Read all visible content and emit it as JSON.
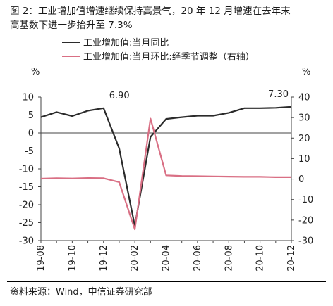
{
  "header": {
    "title_line1": "图 2：工业增加值增速继续保持高景气，20 年 12 月增速在去年末",
    "title_line2": "高基数下进一步抬升至 7.3%"
  },
  "footer": {
    "source": "资料来源：Wind，中信证券研究部"
  },
  "colors": {
    "primary": "#2b2b2b",
    "secondary": "#d96f84"
  },
  "chart_data": {
    "type": "line",
    "categories": [
      "19-08",
      "19-09",
      "19-10",
      "19-11",
      "19-12",
      "20-01",
      "20-02",
      "20-03",
      "20-04",
      "20-05",
      "20-06",
      "20-07",
      "20-08",
      "20-09",
      "20-10",
      "20-11",
      "20-12"
    ],
    "x_tick_labels": [
      "19-08",
      "19-10",
      "19-12",
      "20-02",
      "20-04",
      "20-06",
      "20-08",
      "20-10",
      "20-12"
    ],
    "left_axis": {
      "unit": "%",
      "ylim": [
        -30,
        10
      ],
      "ticks": [
        10,
        5,
        0,
        -5,
        -10,
        -15,
        -20,
        -25,
        -30
      ]
    },
    "right_axis": {
      "unit": "%",
      "ylim": [
        -30,
        40
      ],
      "ticks": [
        40,
        30,
        20,
        10,
        0,
        -10,
        -20,
        -30
      ]
    },
    "series": [
      {
        "name": "工业增加值:当月同比",
        "axis": "left",
        "values": [
          4.4,
          5.8,
          4.7,
          6.2,
          6.9,
          -4.3,
          -25.9,
          -1.1,
          3.9,
          4.4,
          4.8,
          4.8,
          5.6,
          6.9,
          6.9,
          7.0,
          7.3
        ]
      },
      {
        "name": "工业增加值:当月环比:经季节调整（右轴）",
        "axis": "right",
        "values": [
          0.2,
          0.4,
          0.3,
          0.5,
          0.4,
          -1.5,
          -24.5,
          29.5,
          1.8,
          1.5,
          1.4,
          1.3,
          1.2,
          1.1,
          1.1,
          0.9,
          0.9
        ]
      }
    ],
    "annotations": [
      {
        "text": "6.90",
        "series": 0,
        "index": 4
      },
      {
        "text": "7.30",
        "series": 0,
        "index": 16
      }
    ],
    "legend_position": "top-left",
    "grid": false
  }
}
